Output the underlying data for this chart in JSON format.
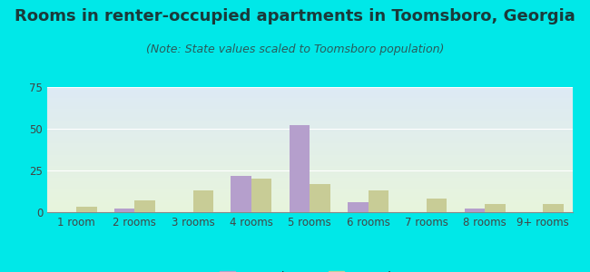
{
  "title": "Rooms in renter-occupied apartments in Toomsboro, Georgia",
  "subtitle": "(Note: State values scaled to Toomsboro population)",
  "categories": [
    "1 room",
    "2 rooms",
    "3 rooms",
    "4 rooms",
    "5 rooms",
    "6 rooms",
    "7 rooms",
    "8 rooms",
    "9+ rooms"
  ],
  "toomsboro_values": [
    0,
    2,
    0,
    22,
    52,
    6,
    0,
    2,
    0
  ],
  "georgia_values": [
    3,
    7,
    13,
    20,
    17,
    13,
    8,
    5,
    5
  ],
  "toomsboro_color": "#b59fcc",
  "georgia_color": "#c8cc96",
  "background_color": "#00e8e8",
  "plot_bg_top": "#ddeaf5",
  "plot_bg_bottom": "#e8f5dc",
  "ylim": [
    0,
    75
  ],
  "yticks": [
    0,
    25,
    50,
    75
  ],
  "bar_width": 0.35,
  "legend_labels": [
    "Toomsboro",
    "Georgia"
  ],
  "title_fontsize": 13,
  "subtitle_fontsize": 9,
  "axis_label_fontsize": 8.5,
  "legend_fontsize": 10,
  "title_color": "#1a3a3a",
  "subtitle_color": "#2a5a5a",
  "tick_color": "#444444"
}
